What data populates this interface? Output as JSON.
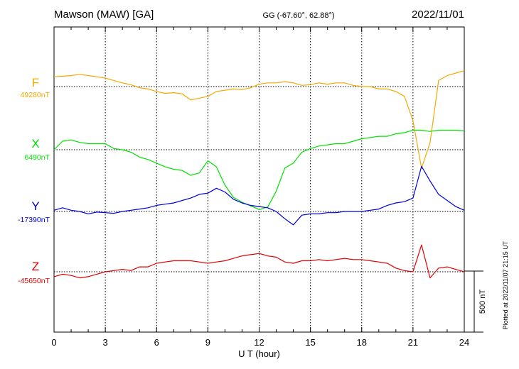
{
  "header": {
    "station": "Mawson (MAW)  [GA]",
    "coords": "GG (-67.60°,  62.88°)",
    "date": "2022/11/01"
  },
  "footer_note": "Plotted at 2022/11/07 21:15 UT",
  "chart_data": {
    "type": "line",
    "xlabel": "U T (hour)",
    "xlim": [
      0,
      24
    ],
    "x_ticks": [
      "0",
      "3",
      "6",
      "9",
      "12",
      "15",
      "18",
      "21",
      "24"
    ],
    "grid": true,
    "scale_bar_label": "500 nT",
    "scale_bar_nT": 500,
    "sampling_hours": 0.5,
    "colors": {
      "F": "#f5a800",
      "X": "#00e000",
      "Y": "#0000d8",
      "Z": "#e00000"
    },
    "series": [
      {
        "name": "F",
        "baseline_label": "49280nT",
        "baseline_nT": 49280,
        "values_nT": [
          49360,
          49365,
          49370,
          49380,
          49370,
          49360,
          49350,
          49330,
          49310,
          49295,
          49270,
          49260,
          49240,
          49225,
          49230,
          49220,
          49170,
          49185,
          49200,
          49240,
          49250,
          49260,
          49255,
          49270,
          49300,
          49310,
          49310,
          49320,
          49310,
          49290,
          49295,
          49310,
          49300,
          49310,
          49310,
          49290,
          49280,
          49280,
          49260,
          49260,
          49240,
          49200,
          49000,
          48610,
          48820,
          49330,
          49370,
          49390,
          49410
        ]
      },
      {
        "name": "X",
        "baseline_label": "6490nT",
        "baseline_nT": 6490,
        "values_nT": [
          6490,
          6560,
          6570,
          6550,
          6540,
          6540,
          6540,
          6500,
          6490,
          6470,
          6430,
          6410,
          6380,
          6350,
          6330,
          6320,
          6280,
          6300,
          6400,
          6350,
          6200,
          6100,
          6060,
          6030,
          6000,
          6020,
          6150,
          6340,
          6380,
          6470,
          6500,
          6520,
          6530,
          6540,
          6540,
          6560,
          6580,
          6590,
          6600,
          6600,
          6620,
          6630,
          6650,
          6650,
          6640,
          6650,
          6650,
          6650,
          6645
        ]
      },
      {
        "name": "Y",
        "baseline_label": "-17390nT",
        "baseline_nT": -17390,
        "values_nT": [
          -17380,
          -17360,
          -17380,
          -17390,
          -17410,
          -17395,
          -17400,
          -17405,
          -17390,
          -17380,
          -17370,
          -17360,
          -17340,
          -17330,
          -17320,
          -17300,
          -17280,
          -17250,
          -17240,
          -17200,
          -17230,
          -17290,
          -17320,
          -17340,
          -17350,
          -17360,
          -17390,
          -17450,
          -17500,
          -17420,
          -17410,
          -17410,
          -17400,
          -17400,
          -17390,
          -17390,
          -17390,
          -17380,
          -17370,
          -17340,
          -17320,
          -17310,
          -17280,
          -17020,
          -17140,
          -17250,
          -17300,
          -17350,
          -17380
        ]
      },
      {
        "name": "Z",
        "baseline_label": "-45650nT",
        "baseline_nT": -45650,
        "values_nT": [
          -45690,
          -45670,
          -45680,
          -45700,
          -45690,
          -45670,
          -45650,
          -45640,
          -45630,
          -45640,
          -45610,
          -45610,
          -45580,
          -45570,
          -45560,
          -45560,
          -45560,
          -45570,
          -45580,
          -45570,
          -45560,
          -45540,
          -45520,
          -45510,
          -45500,
          -45520,
          -45530,
          -45570,
          -45580,
          -45560,
          -45560,
          -45550,
          -45560,
          -45550,
          -45540,
          -45550,
          -45550,
          -45560,
          -45570,
          -45580,
          -45620,
          -45640,
          -45650,
          -45430,
          -45700,
          -45620,
          -45610,
          -45630,
          -45650
        ]
      }
    ]
  }
}
